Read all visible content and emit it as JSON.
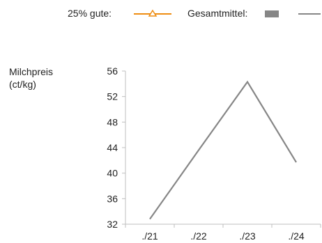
{
  "chart_data": {
    "type": "line",
    "title": "",
    "ylabel_lines": [
      "Milchpreis",
      "(ct/kg)"
    ],
    "xlabel": "",
    "categories": [
      "./21",
      "./22",
      "./23",
      "./24"
    ],
    "ylim": [
      32,
      56
    ],
    "yticks": [
      "32",
      "36",
      "40",
      "44",
      "48",
      "52",
      "56"
    ],
    "ytick_values": [
      32,
      36,
      40,
      44,
      48,
      52,
      56
    ],
    "grid": false,
    "legend_position": "top-right",
    "legend": [
      {
        "label": "25% gute:",
        "color": "#ee8c10",
        "marker": "triangle-line"
      },
      {
        "label": "Gesamtmittel:",
        "color": "#868686",
        "marker": "box-and-line"
      }
    ],
    "series": [
      {
        "color": "#868686",
        "values": [
          32.8,
          43.6,
          54.3,
          41.7
        ]
      }
    ]
  }
}
